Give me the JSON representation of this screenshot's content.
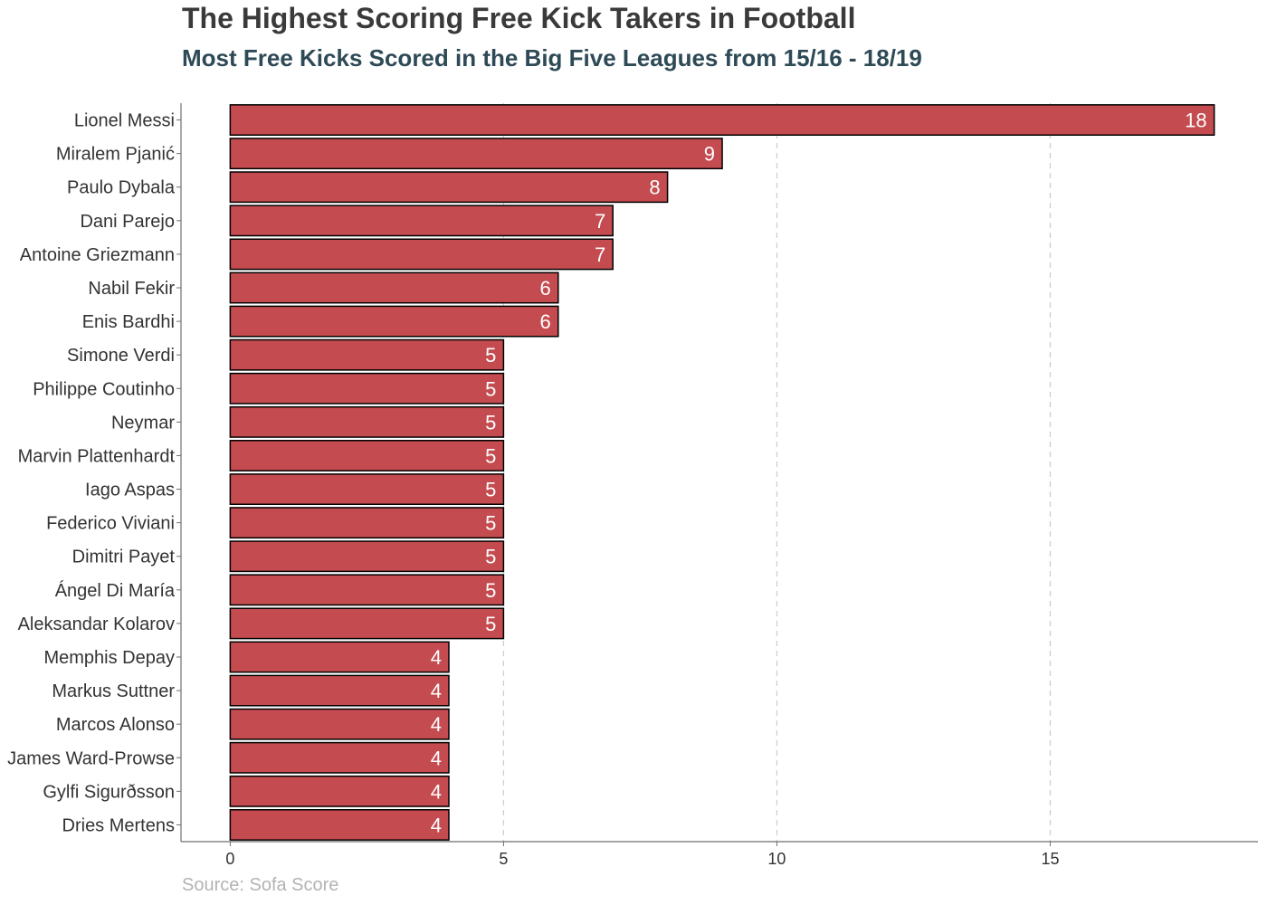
{
  "chart_data": {
    "type": "bar",
    "orientation": "horizontal",
    "title": "The Highest Scoring Free Kick Takers in Football",
    "subtitle": "Most Free Kicks Scored in the Big Five Leagues from 15/16 - 18/19",
    "caption": "Source: Sofa Score",
    "xlabel": "",
    "ylabel": "",
    "categories": [
      "Lionel Messi",
      "Miralem Pjanić",
      "Paulo Dybala",
      "Dani Parejo",
      "Antoine Griezmann",
      "Nabil Fekir",
      "Enis Bardhi",
      "Simone Verdi",
      "Philippe Coutinho",
      "Neymar",
      "Marvin Plattenhardt",
      "Iago Aspas",
      "Federico Viviani",
      "Dimitri Payet",
      "Ángel Di María",
      "Aleksandar Kolarov",
      "Memphis Depay",
      "Markus Suttner",
      "Marcos Alonso",
      "James Ward-Prowse",
      "Gylfi Sigurðsson",
      "Dries Mertens"
    ],
    "values": [
      18,
      9,
      8,
      7,
      7,
      6,
      6,
      5,
      5,
      5,
      5,
      5,
      5,
      5,
      5,
      5,
      4,
      4,
      4,
      4,
      4,
      4
    ],
    "data_labels": [
      "18",
      "9",
      "8",
      "7",
      "7",
      "6",
      "6",
      "5",
      "5",
      "5",
      "5",
      "5",
      "5",
      "5",
      "5",
      "5",
      "4",
      "4",
      "4",
      "4",
      "4",
      "4"
    ],
    "x_ticks": [
      0,
      5,
      10,
      15
    ],
    "x_tick_labels": [
      "0",
      "5",
      "10",
      "15"
    ],
    "xlim": [
      -0.9,
      18.8
    ],
    "grid": "vertical dashed at major ticks",
    "legend": "none",
    "colors": {
      "bar_fill": "#c44b4f",
      "bar_stroke": "#000000",
      "label_text": "#ffffff",
      "grid": "#cfcfcf",
      "axis": "#6e6e6e"
    }
  }
}
